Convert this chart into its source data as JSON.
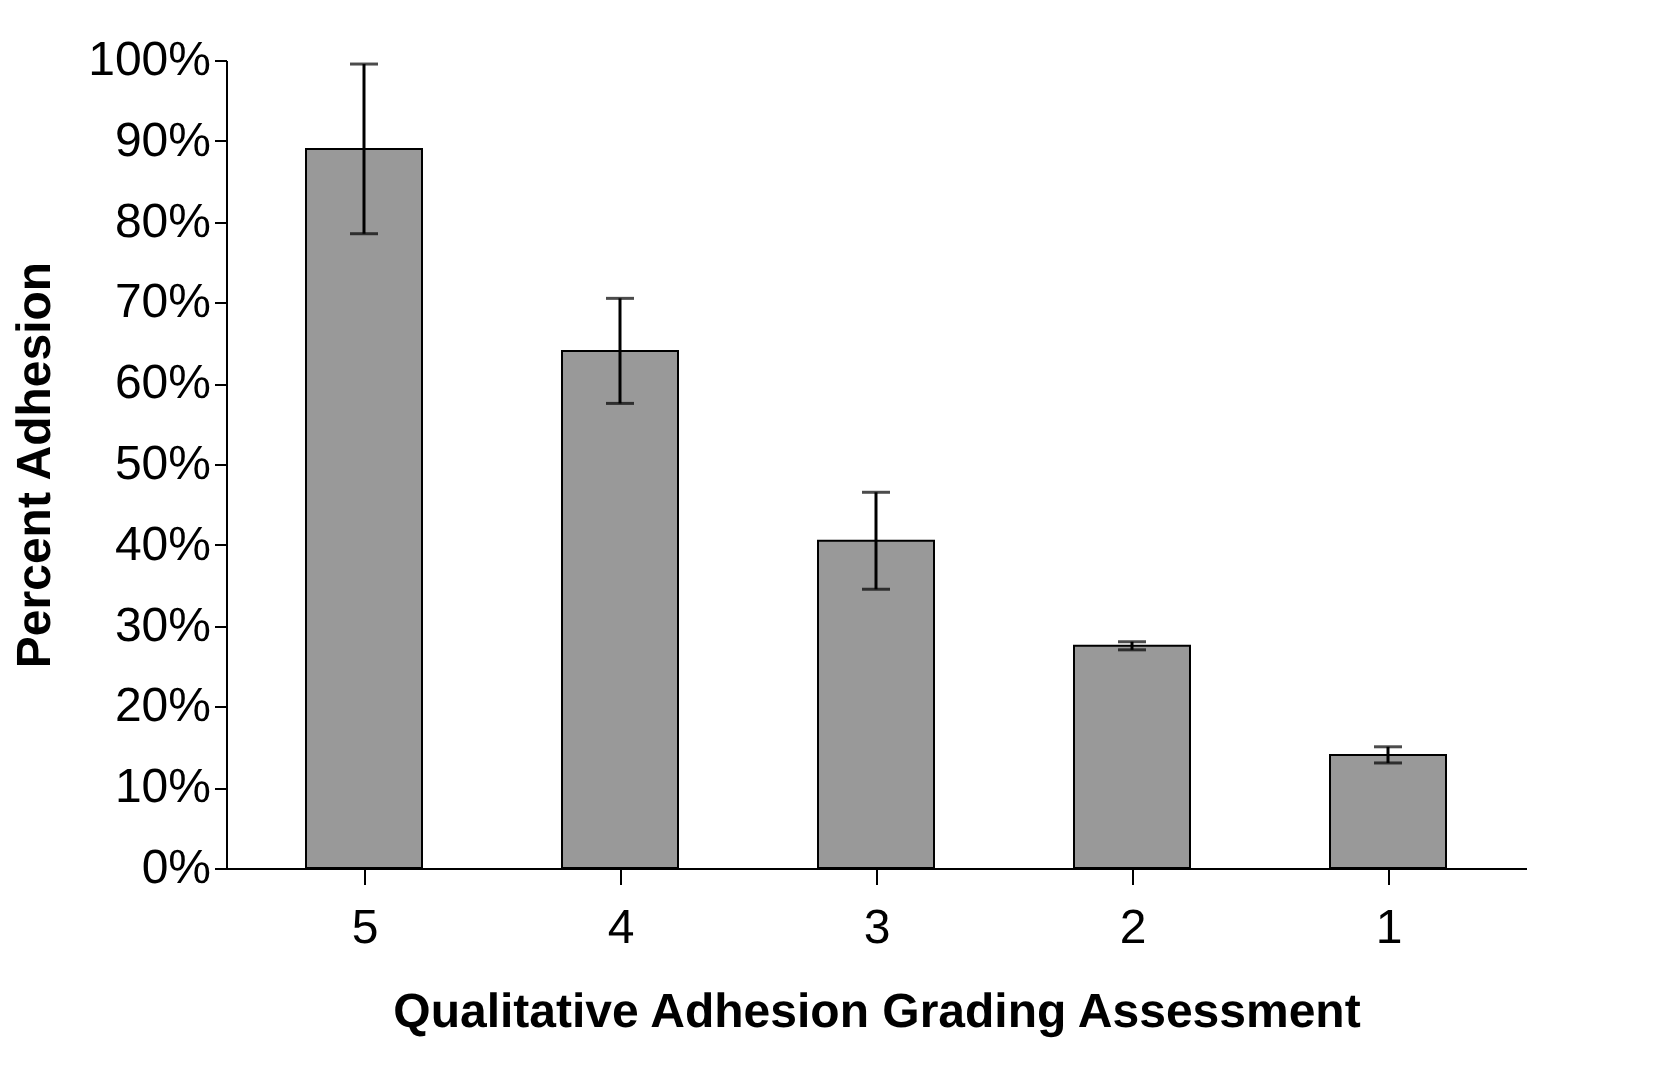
{
  "chart_data": {
    "type": "bar",
    "xlabel": "Qualitative Adhesion Grading Assessment",
    "ylabel": "Percent Adhesion",
    "categories": [
      "5",
      "4",
      "3",
      "2",
      "1"
    ],
    "values": [
      89,
      64,
      40.5,
      27.5,
      14
    ],
    "errors": [
      10.5,
      6.5,
      6,
      0.5,
      1
    ],
    "color": "#999999",
    "ylim": [
      0,
      100
    ],
    "yticks": [
      {
        "value": 0,
        "label": "0%"
      },
      {
        "value": 10,
        "label": "10%"
      },
      {
        "value": 20,
        "label": "20%"
      },
      {
        "value": 30,
        "label": "30%"
      },
      {
        "value": 40,
        "label": "40%"
      },
      {
        "value": 50,
        "label": "50%"
      },
      {
        "value": 60,
        "label": "60%"
      },
      {
        "value": 70,
        "label": "70%"
      },
      {
        "value": 80,
        "label": "80%"
      },
      {
        "value": 90,
        "label": "90%"
      },
      {
        "value": 100,
        "label": "100%"
      }
    ],
    "grid": false
  }
}
